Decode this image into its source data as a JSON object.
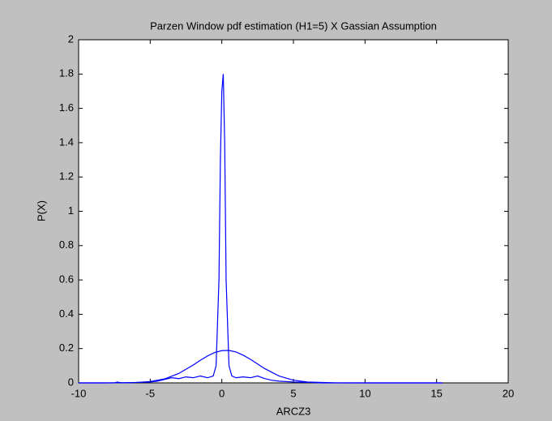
{
  "chart_data": {
    "type": "line",
    "title": "Parzen Window pdf estimation (H1=5) X Gassian Assumption",
    "x_label": "ARCZ3",
    "y_label": "P(X)",
    "series": [
      {
        "color": "#0000ff",
        "x": [
          -10,
          -7.5,
          -7.3,
          -7,
          -5,
          -4.5,
          -4,
          -3.5,
          -3,
          -2.5,
          -2,
          -1.5,
          -1,
          -0.6,
          -0.4,
          -0.2,
          -0.1,
          0,
          0.1,
          0.2,
          0.3,
          0.5,
          0.7,
          1,
          1.5,
          2,
          2.5,
          3,
          3.5,
          4,
          5,
          6,
          7,
          10,
          15.4
        ],
        "values": [
          0,
          0,
          0.005,
          0,
          0.005,
          0.01,
          0.02,
          0.03,
          0.025,
          0.035,
          0.03,
          0.04,
          0.03,
          0.04,
          0.1,
          0.6,
          1.3,
          1.7,
          1.8,
          1.4,
          0.6,
          0.1,
          0.04,
          0.03,
          0.035,
          0.03,
          0.04,
          0.025,
          0.015,
          0.01,
          0.005,
          0.003,
          0,
          0,
          0
        ]
      },
      {
        "color": "#0000ff",
        "x": [
          -10,
          -8,
          -6,
          -5,
          -4,
          -3,
          -2,
          -1.5,
          -1,
          -0.5,
          0,
          0.5,
          1,
          1.5,
          2,
          3,
          4,
          5,
          6,
          8,
          10,
          12,
          15.4
        ],
        "values": [
          0,
          0.0002,
          0.0021,
          0.0079,
          0.023,
          0.055,
          0.104,
          0.132,
          0.157,
          0.177,
          0.188,
          0.189,
          0.18,
          0.161,
          0.137,
          0.083,
          0.04,
          0.0155,
          0.0048,
          0.0002,
          0,
          0,
          0
        ]
      }
    ],
    "xlim": [
      -10,
      20
    ],
    "xticks": [
      -10,
      -5,
      0,
      5,
      10,
      15,
      20
    ],
    "ylim": [
      0,
      2
    ],
    "yticks": [
      0,
      0.2,
      0.4,
      0.6,
      0.8,
      1,
      1.2,
      1.4,
      1.6,
      1.8,
      2
    ],
    "grid": false
  }
}
